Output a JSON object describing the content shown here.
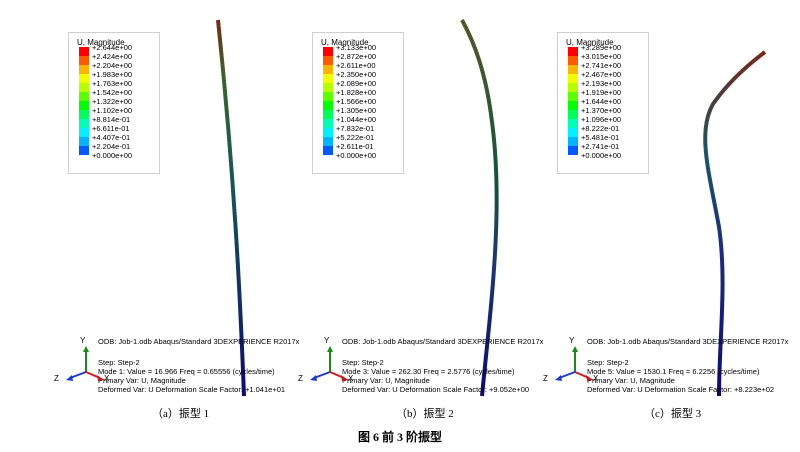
{
  "legend_title": "U, Magnitude",
  "legend_colors": [
    "#ff0000",
    "#ff5a00",
    "#ffb400",
    "#f0ff00",
    "#b4ff00",
    "#5aff00",
    "#00ff00",
    "#00ff5a",
    "#00ffb4",
    "#00f0ff",
    "#00b4ff",
    "#005aff",
    "#0000ff"
  ],
  "panels": [
    {
      "legend_values": [
        "+2.644e+00",
        "+2.424e+00",
        "+2.204e+00",
        "+1.983e+00",
        "+1.763e+00",
        "+1.542e+00",
        "+1.322e+00",
        "+1.102e+00",
        "+8.814e-01",
        "+6.611e-01",
        "+4.407e-01",
        "+2.204e-01",
        "+0.000e+00"
      ],
      "odb_line": "ODB: Job-1.odb    Abaqus/Standard 3DEXPERIENCE R2017x",
      "step": "Step: Step-2",
      "mode": "Mode        1: Value =   16.966    Freq =   0.65556    (cycles/time)",
      "primary": "Primary Var: U, Magnitude",
      "deformed": "Deformed Var: U   Deformation Scale Factor: +1.041e+01",
      "caption": "（a）振型 1"
    },
    {
      "legend_values": [
        "+3.133e+00",
        "+2.872e+00",
        "+2.611e+00",
        "+2.350e+00",
        "+2.089e+00",
        "+1.828e+00",
        "+1.566e+00",
        "+1.305e+00",
        "+1.044e+00",
        "+7.832e-01",
        "+5.222e-01",
        "+2.611e-01",
        "+0.000e+00"
      ],
      "odb_line": "ODB: Job-1.odb    Abaqus/Standard 3DEXPERIENCE R2017x",
      "step": "Step: Step-2",
      "mode": "Mode        3: Value =   262.30    Freq =   2.5776    (cycles/time)",
      "primary": "Primary Var: U, Magnitude",
      "deformed": "Deformed Var: U   Deformation Scale Factor: +9.052e+00",
      "caption": "（b）振型 2"
    },
    {
      "legend_values": [
        "+3.289e+00",
        "+3.015e+00",
        "+2.741e+00",
        "+2.467e+00",
        "+2.193e+00",
        "+1.919e+00",
        "+1.644e+00",
        "+1.370e+00",
        "+1.096e+00",
        "+8.222e-01",
        "+5.481e-01",
        "+2.741e-01",
        "+0.000e+00"
      ],
      "odb_line": "ODB: Job-1.odb    Abaqus/Standard 3DEXPERIENCE R2017x",
      "step": "Step: Step-2",
      "mode": "Mode        5: Value =   1530.1    Freq =   6.2256    (cycles/time)",
      "primary": "Primary Var: U, Magnitude",
      "deformed": "Deformed Var: U   Deformation Scale Factor: +8.223e+02",
      "caption": "（c）振型 3"
    }
  ],
  "triad": {
    "y": "Y",
    "z": "Z",
    "x": "X"
  },
  "figure_title": "图 6  前 3 阶振型"
}
